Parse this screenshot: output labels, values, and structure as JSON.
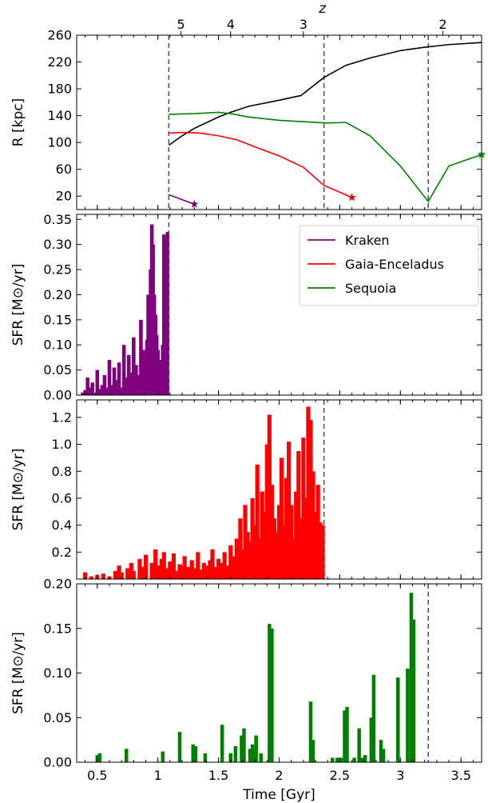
{
  "chart_data": [
    {
      "type": "line",
      "ylabel": "R [kpc]",
      "top_axis_label": "z",
      "xlim": [
        0.33,
        3.67
      ],
      "ylim": [
        0,
        260
      ],
      "yticks": [
        20,
        60,
        100,
        140,
        180,
        220,
        260
      ],
      "top_ticks": [
        {
          "label": "5",
          "t": 1.19
        },
        {
          "label": "4",
          "t": 1.6
        },
        {
          "label": "3",
          "t": 2.2
        },
        {
          "label": "2",
          "t": 3.35
        }
      ],
      "vlines": [
        1.09,
        2.37,
        3.23
      ],
      "series": [
        {
          "color": "#000000",
          "x": [
            1.09,
            1.2,
            1.3,
            1.5,
            1.6,
            1.75,
            2.0,
            2.18,
            2.37,
            2.55,
            2.75,
            3.0,
            3.2,
            3.4,
            3.67
          ],
          "y": [
            96,
            110,
            121,
            138,
            145,
            154,
            163,
            170,
            197,
            215,
            226,
            237,
            242,
            246,
            249
          ]
        },
        {
          "color": "#ff0000",
          "x": [
            1.09,
            1.2,
            1.35,
            1.5,
            1.65,
            1.85,
            2.0,
            2.2,
            2.37,
            2.6
          ],
          "y": [
            114,
            115,
            114,
            110,
            104,
            90,
            80,
            63,
            36,
            18
          ],
          "end_marker": "star"
        },
        {
          "color": "#008000",
          "x": [
            1.09,
            1.3,
            1.5,
            1.6,
            1.75,
            2.0,
            2.2,
            2.4,
            2.55,
            2.75,
            3.0,
            3.23,
            3.4,
            3.67
          ],
          "y": [
            142,
            143,
            145,
            143,
            138,
            133,
            131,
            129,
            130,
            110,
            65,
            12,
            65,
            82
          ],
          "end_marker": "star"
        },
        {
          "color": "#800080",
          "x": [
            1.09,
            1.3
          ],
          "y": [
            22,
            8
          ],
          "end_marker": "star"
        }
      ]
    },
    {
      "type": "bar",
      "ylabel": "SFR [M⊙/yr]",
      "xlim": [
        0.33,
        3.67
      ],
      "ylim": [
        0,
        0.36
      ],
      "yticks": [
        0.0,
        0.05,
        0.1,
        0.15,
        0.2,
        0.25,
        0.3,
        0.35
      ],
      "yticklabels": [
        "0.00",
        "0.05",
        "0.10",
        "0.15",
        "0.20",
        "0.25",
        "0.30",
        "0.35"
      ],
      "vline": 1.09,
      "color": "#800080",
      "legend_position": "top-right",
      "legend": [
        {
          "name": "Kraken",
          "color": "#800080"
        },
        {
          "name": "Gaia-Enceladus",
          "color": "#ff0000"
        },
        {
          "name": "Sequoia",
          "color": "#008000"
        }
      ],
      "x": [
        0.38,
        0.4,
        0.42,
        0.44,
        0.46,
        0.48,
        0.5,
        0.52,
        0.54,
        0.56,
        0.58,
        0.6,
        0.62,
        0.64,
        0.66,
        0.68,
        0.7,
        0.72,
        0.74,
        0.76,
        0.78,
        0.8,
        0.82,
        0.84,
        0.86,
        0.88,
        0.9,
        0.91,
        0.92,
        0.93,
        0.94,
        0.95,
        0.96,
        0.97,
        0.98,
        0.99,
        1.0,
        1.01,
        1.02,
        1.03,
        1.04,
        1.05,
        1.06,
        1.07,
        1.08
      ],
      "values": [
        0.005,
        0.01,
        0.035,
        0.015,
        0.025,
        0.005,
        0.05,
        0.012,
        0.02,
        0.04,
        0.015,
        0.07,
        0.02,
        0.055,
        0.03,
        0.065,
        0.015,
        0.1,
        0.035,
        0.08,
        0.045,
        0.115,
        0.06,
        0.04,
        0.15,
        0.09,
        0.07,
        0.11,
        0.2,
        0.135,
        0.25,
        0.34,
        0.3,
        0.2,
        0.16,
        0.12,
        0.09,
        0.07,
        0.045,
        0.03,
        0.1,
        0.32,
        0.3,
        0.18,
        0.325
      ]
    },
    {
      "type": "bar",
      "ylabel": "SFR [M⊙/yr]",
      "xlim": [
        0.33,
        3.67
      ],
      "ylim": [
        0,
        1.33
      ],
      "yticks": [
        0.2,
        0.4,
        0.6,
        0.8,
        1.0,
        1.2
      ],
      "yticklabels": [
        "0.2",
        "0.4",
        "0.6",
        "0.8",
        "1.0",
        "1.2"
      ],
      "vline": 2.37,
      "color": "#ff0000",
      "x": [
        0.4,
        0.45,
        0.5,
        0.55,
        0.6,
        0.65,
        0.68,
        0.7,
        0.75,
        0.78,
        0.8,
        0.85,
        0.88,
        0.9,
        0.95,
        0.98,
        1.0,
        1.03,
        1.05,
        1.08,
        1.1,
        1.13,
        1.15,
        1.18,
        1.2,
        1.22,
        1.25,
        1.28,
        1.3,
        1.33,
        1.35,
        1.38,
        1.4,
        1.43,
        1.45,
        1.48,
        1.5,
        1.53,
        1.55,
        1.58,
        1.6,
        1.62,
        1.65,
        1.68,
        1.7,
        1.72,
        1.74,
        1.76,
        1.78,
        1.8,
        1.82,
        1.84,
        1.86,
        1.88,
        1.9,
        1.92,
        1.94,
        1.96,
        1.98,
        2.0,
        2.02,
        2.04,
        2.06,
        2.08,
        2.1,
        2.12,
        2.14,
        2.16,
        2.18,
        2.2,
        2.22,
        2.24,
        2.26,
        2.28,
        2.3,
        2.32,
        2.34,
        2.36
      ],
      "values": [
        0.05,
        0.02,
        0.03,
        0.04,
        0.02,
        0.06,
        0.1,
        0.05,
        0.08,
        0.12,
        0.06,
        0.15,
        0.09,
        0.18,
        0.12,
        0.22,
        0.1,
        0.15,
        0.2,
        0.08,
        0.13,
        0.19,
        0.06,
        0.11,
        0.1,
        0.17,
        0.09,
        0.14,
        0.08,
        0.2,
        0.07,
        0.12,
        0.1,
        0.14,
        0.22,
        0.09,
        0.15,
        0.12,
        0.2,
        0.1,
        0.25,
        0.17,
        0.3,
        0.45,
        0.22,
        0.55,
        0.35,
        0.28,
        0.6,
        0.4,
        0.85,
        0.3,
        0.65,
        0.5,
        1.0,
        1.22,
        0.7,
        0.45,
        0.35,
        0.55,
        0.9,
        0.4,
        0.75,
        1.02,
        0.55,
        0.3,
        0.65,
        0.95,
        0.45,
        1.05,
        0.6,
        1.28,
        1.18,
        0.8,
        0.5,
        0.7,
        0.42,
        0.4
      ]
    },
    {
      "type": "bar",
      "ylabel": "SFR [M⊙/yr]",
      "xlabel": "Time [Gyr]",
      "xlim": [
        0.33,
        3.67
      ],
      "ylim": [
        0,
        0.2
      ],
      "xticks": [
        0.5,
        1.0,
        1.5,
        2.0,
        2.5,
        3.0,
        3.5
      ],
      "yticks": [
        0.0,
        0.05,
        0.1,
        0.15,
        0.2
      ],
      "yticklabels": [
        "0.00",
        "0.05",
        "0.10",
        "0.15",
        "0.20"
      ],
      "vline": 3.23,
      "color": "#008000",
      "x": [
        0.5,
        0.52,
        0.74,
        1.04,
        1.18,
        1.29,
        1.31,
        1.39,
        1.53,
        1.6,
        1.64,
        1.69,
        1.71,
        1.76,
        1.78,
        1.8,
        1.81,
        1.85,
        1.92,
        1.94,
        2.26,
        2.28,
        2.44,
        2.48,
        2.51,
        2.54,
        2.56,
        2.62,
        2.66,
        2.69,
        2.71,
        2.76,
        2.78,
        2.84,
        2.86,
        2.98,
        3.06,
        3.09,
        3.11
      ],
      "values": [
        0.008,
        0.01,
        0.015,
        0.012,
        0.034,
        0.02,
        0.018,
        0.01,
        0.042,
        0.01,
        0.018,
        0.03,
        0.038,
        0.015,
        0.02,
        0.013,
        0.03,
        0.01,
        0.155,
        0.15,
        0.068,
        0.025,
        0.005,
        0.005,
        0.005,
        0.058,
        0.062,
        0.005,
        0.038,
        0.005,
        0.008,
        0.05,
        0.098,
        0.025,
        0.015,
        0.095,
        0.105,
        0.19,
        0.16
      ]
    }
  ]
}
